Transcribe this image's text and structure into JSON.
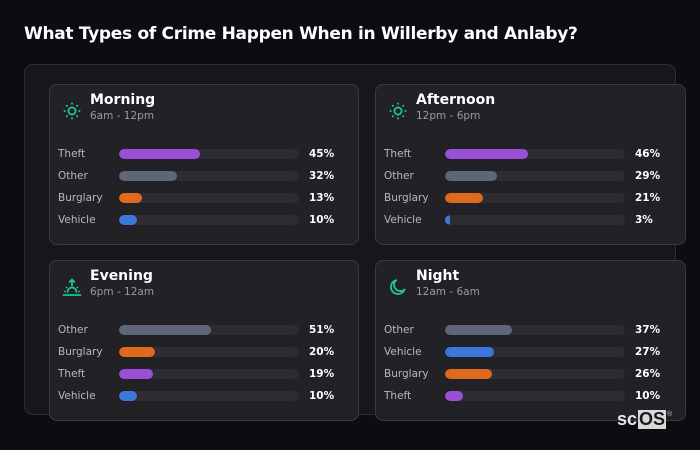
{
  "title": "What Types of Crime Happen When in Willerby and Anlaby?",
  "colors": {
    "theft": "#9a4fd9",
    "other": "#5e6678",
    "burglary": "#e06a1b",
    "vehicle": "#3a78dc",
    "icon": "#20c49a"
  },
  "cards": [
    {
      "name": "Morning",
      "range": "6am - 12pm",
      "icon": "sun-icon",
      "rows": [
        {
          "label": "Theft",
          "value": 45,
          "pct": "45%"
        },
        {
          "label": "Other",
          "value": 32,
          "pct": "32%"
        },
        {
          "label": "Burglary",
          "value": 13,
          "pct": "13%"
        },
        {
          "label": "Vehicle",
          "value": 10,
          "pct": "10%"
        }
      ]
    },
    {
      "name": "Afternoon",
      "range": "12pm - 6pm",
      "icon": "sun-icon",
      "rows": [
        {
          "label": "Theft",
          "value": 46,
          "pct": "46%"
        },
        {
          "label": "Other",
          "value": 29,
          "pct": "29%"
        },
        {
          "label": "Burglary",
          "value": 21,
          "pct": "21%"
        },
        {
          "label": "Vehicle",
          "value": 3,
          "pct": "3%"
        }
      ]
    },
    {
      "name": "Evening",
      "range": "6pm - 12am",
      "icon": "sunset-icon",
      "rows": [
        {
          "label": "Other",
          "value": 51,
          "pct": "51%"
        },
        {
          "label": "Burglary",
          "value": 20,
          "pct": "20%"
        },
        {
          "label": "Theft",
          "value": 19,
          "pct": "19%"
        },
        {
          "label": "Vehicle",
          "value": 10,
          "pct": "10%"
        }
      ]
    },
    {
      "name": "Night",
      "range": "12am - 6am",
      "icon": "moon-icon",
      "rows": [
        {
          "label": "Other",
          "value": 37,
          "pct": "37%"
        },
        {
          "label": "Vehicle",
          "value": 27,
          "pct": "27%"
        },
        {
          "label": "Burglary",
          "value": 26,
          "pct": "26%"
        },
        {
          "label": "Theft",
          "value": 10,
          "pct": "10%"
        }
      ]
    }
  ],
  "logo": {
    "sc": "sc",
    "os": "OS",
    "reg": "®"
  },
  "chart_data": {
    "type": "bar",
    "title": "What Types of Crime Happen When in Willerby and Anlaby?",
    "orientation": "horizontal",
    "unit": "%",
    "xlim": [
      0,
      100
    ],
    "panels": [
      {
        "title": "Morning",
        "subtitle": "6am - 12pm",
        "categories": [
          "Theft",
          "Other",
          "Burglary",
          "Vehicle"
        ],
        "values": [
          45,
          32,
          13,
          10
        ]
      },
      {
        "title": "Afternoon",
        "subtitle": "12pm - 6pm",
        "categories": [
          "Theft",
          "Other",
          "Burglary",
          "Vehicle"
        ],
        "values": [
          46,
          29,
          21,
          3
        ]
      },
      {
        "title": "Evening",
        "subtitle": "6pm - 12am",
        "categories": [
          "Other",
          "Burglary",
          "Theft",
          "Vehicle"
        ],
        "values": [
          51,
          20,
          19,
          10
        ]
      },
      {
        "title": "Night",
        "subtitle": "12am - 6am",
        "categories": [
          "Other",
          "Vehicle",
          "Burglary",
          "Theft"
        ],
        "values": [
          37,
          27,
          26,
          10
        ]
      }
    ],
    "series_colors": {
      "Theft": "#9a4fd9",
      "Other": "#5e6678",
      "Burglary": "#e06a1b",
      "Vehicle": "#3a78dc"
    }
  }
}
